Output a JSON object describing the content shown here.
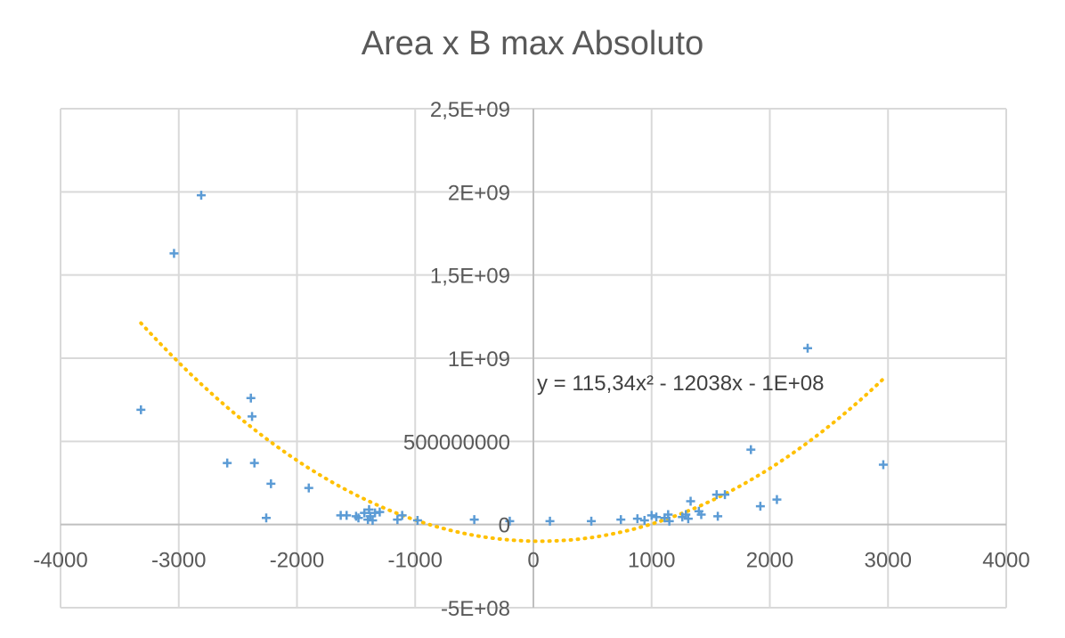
{
  "chart_data": {
    "type": "scatter",
    "title": "Area x B max Absoluto",
    "xlim": [
      -4000,
      4000
    ],
    "ylim": [
      -500000000,
      2500000000
    ],
    "x_ticks": [
      -4000,
      -3000,
      -2000,
      -1000,
      0,
      1000,
      2000,
      3000,
      4000
    ],
    "x_tick_labels": [
      "-4000",
      "-3000",
      "-2000",
      "-1000",
      "0",
      "1000",
      "2000",
      "3000",
      "4000"
    ],
    "y_ticks": [
      -500000000,
      0,
      500000000,
      1000000000,
      1500000000,
      2000000000,
      2500000000
    ],
    "y_tick_labels": [
      "-5E+08",
      "0",
      "500000000",
      "1E+09",
      "1,5E+09",
      "2E+09",
      "2,5E+09"
    ],
    "grid": true,
    "legend": "none",
    "marker": "plus",
    "colors": {
      "points": "#5b9bd5",
      "trendline": "#ffc000",
      "grid": "#d9d9d9",
      "axis": "#bfbfbf"
    },
    "points": [
      [
        -3320,
        690000000
      ],
      [
        -3040,
        1630000000
      ],
      [
        -2810,
        1980000000
      ],
      [
        -2590,
        370000000
      ],
      [
        -2390,
        760000000
      ],
      [
        -2380,
        650000000
      ],
      [
        -2360,
        370000000
      ],
      [
        -2260,
        40000000
      ],
      [
        -2220,
        245000000
      ],
      [
        -1900,
        220000000
      ],
      [
        -1630,
        55000000
      ],
      [
        -1580,
        55000000
      ],
      [
        -1500,
        50000000
      ],
      [
        -1480,
        40000000
      ],
      [
        -1430,
        70000000
      ],
      [
        -1400,
        30000000
      ],
      [
        -1390,
        90000000
      ],
      [
        -1380,
        50000000
      ],
      [
        -1360,
        25000000
      ],
      [
        -1340,
        70000000
      ],
      [
        -1300,
        75000000
      ],
      [
        -1150,
        30000000
      ],
      [
        -1110,
        55000000
      ],
      [
        -980,
        25000000
      ],
      [
        -500,
        30000000
      ],
      [
        -200,
        20000000
      ],
      [
        140,
        20000000
      ],
      [
        490,
        20000000
      ],
      [
        740,
        30000000
      ],
      [
        880,
        35000000
      ],
      [
        940,
        25000000
      ],
      [
        1000,
        55000000
      ],
      [
        1040,
        45000000
      ],
      [
        1110,
        40000000
      ],
      [
        1140,
        60000000
      ],
      [
        1150,
        20000000
      ],
      [
        1260,
        45000000
      ],
      [
        1290,
        60000000
      ],
      [
        1310,
        35000000
      ],
      [
        1330,
        140000000
      ],
      [
        1400,
        80000000
      ],
      [
        1420,
        60000000
      ],
      [
        1550,
        180000000
      ],
      [
        1560,
        50000000
      ],
      [
        1620,
        180000000
      ],
      [
        1840,
        450000000
      ],
      [
        1920,
        110000000
      ],
      [
        2060,
        150000000
      ],
      [
        2320,
        1060000000
      ],
      [
        2960,
        360000000
      ]
    ],
    "trendline": {
      "type": "polynomial",
      "order": 2,
      "coefficients": [
        115.34,
        -12038,
        -100000000
      ],
      "x_range": [
        -3320,
        2960
      ],
      "equation_label": "y = 115,34x² - 12038x - 1E+08"
    }
  }
}
